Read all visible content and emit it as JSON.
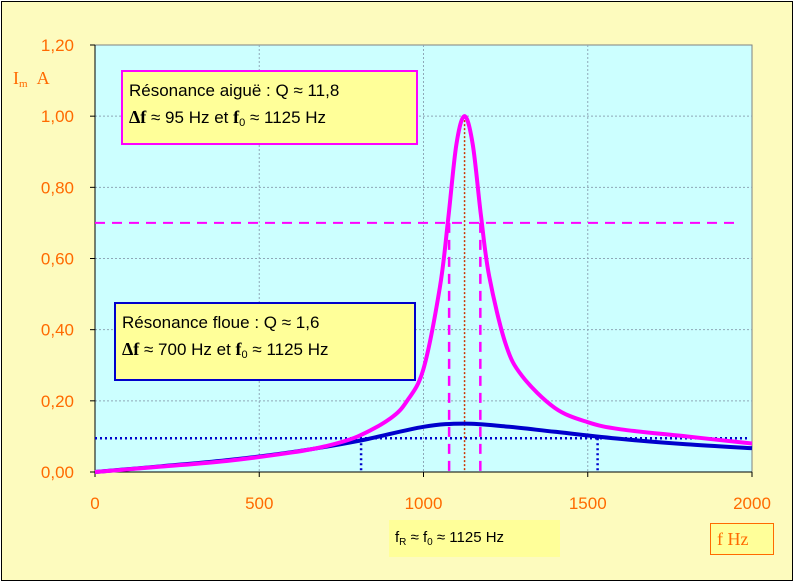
{
  "chart_data": {
    "type": "line",
    "xlim": [
      0,
      2000
    ],
    "ylim": [
      0,
      1.2
    ],
    "x_ticks": [
      "0",
      "500",
      "1000",
      "1500",
      "2000"
    ],
    "y_ticks": [
      "0,00",
      "0,20",
      "0,40",
      "0,60",
      "0,80",
      "1,00",
      "1,20"
    ],
    "grid": true,
    "resonance_frequency": 1125,
    "series": [
      {
        "color": "#ff00ff",
        "x": [
          0,
          200,
          400,
          600,
          700,
          800,
          900,
          950,
          1000,
          1050,
          1075,
          1100,
          1125,
          1150,
          1175,
          1200,
          1250,
          1300,
          1400,
          1500,
          1600,
          1800,
          2000
        ],
        "y": [
          0,
          0.015,
          0.031,
          0.055,
          0.072,
          0.1,
          0.151,
          0.2,
          0.29,
          0.52,
          0.71,
          0.92,
          1.0,
          0.92,
          0.72,
          0.55,
          0.36,
          0.27,
          0.18,
          0.14,
          0.12,
          0.1,
          0.08
        ]
      },
      {
        "color": "#0000cc",
        "x": [
          0,
          200,
          400,
          600,
          800,
          1000,
          1125,
          1250,
          1400,
          1600,
          1800,
          2000
        ],
        "y": [
          0,
          0.016,
          0.033,
          0.056,
          0.087,
          0.127,
          0.136,
          0.128,
          0.113,
          0.093,
          0.078,
          0.067
        ]
      }
    ],
    "reference_lines": {
      "sharp_half_power_level": 0.7,
      "sharp_band": [
        1078,
        1173
      ],
      "wide_half_power_level": 0.095,
      "wide_band": [
        810,
        1530
      ]
    }
  },
  "axis_labels": {
    "y_symbol": "I",
    "y_sub": "m",
    "y_unit": "A",
    "x": "f  Hz"
  },
  "annotations": {
    "sharp": {
      "line1": "Résonance aiguë : Q ≈ 11,8",
      "delta_f": "Δf",
      "line2_rest": " ≈ 95 Hz et ",
      "f0": "f",
      "f0_sub": "0",
      "line2_end": " ≈ 1125 Hz"
    },
    "wide": {
      "line1": "Résonance floue : Q ≈ 1,6",
      "delta_f": "Δf",
      "line2_rest": " ≈ 700 Hz et ",
      "f0": "f",
      "f0_sub": "0",
      "line2_end": " ≈ 1125 Hz"
    },
    "fr": {
      "fr": "f",
      "fr_sub": "R",
      "mid": " ≈ f",
      "f0_sub": "0",
      "end": " ≈ 1125 Hz"
    }
  }
}
